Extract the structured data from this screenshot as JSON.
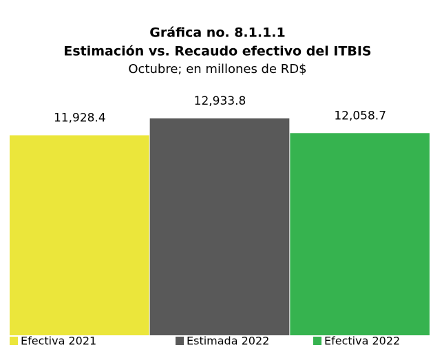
{
  "chart_data": {
    "type": "bar",
    "title": "Gráfica no. 8.1.1.1",
    "subtitle": "Estimación vs. Recaudo efectivo del ITBIS",
    "subtitle2": "Octubre; en millones de RD$",
    "series": [
      {
        "name": "Efectiva 2021",
        "color": "#ebe63b",
        "values": [
          11928.4
        ],
        "value_labels": [
          "11,928.4"
        ]
      },
      {
        "name": "Estimada 2022",
        "color": "#595959",
        "values": [
          12933.8
        ],
        "value_labels": [
          "12,933.8"
        ]
      },
      {
        "name": "Efectiva 2022",
        "color": "#36b34f",
        "values": [
          12058.7
        ],
        "value_labels": [
          "12,058.7"
        ]
      }
    ]
  }
}
